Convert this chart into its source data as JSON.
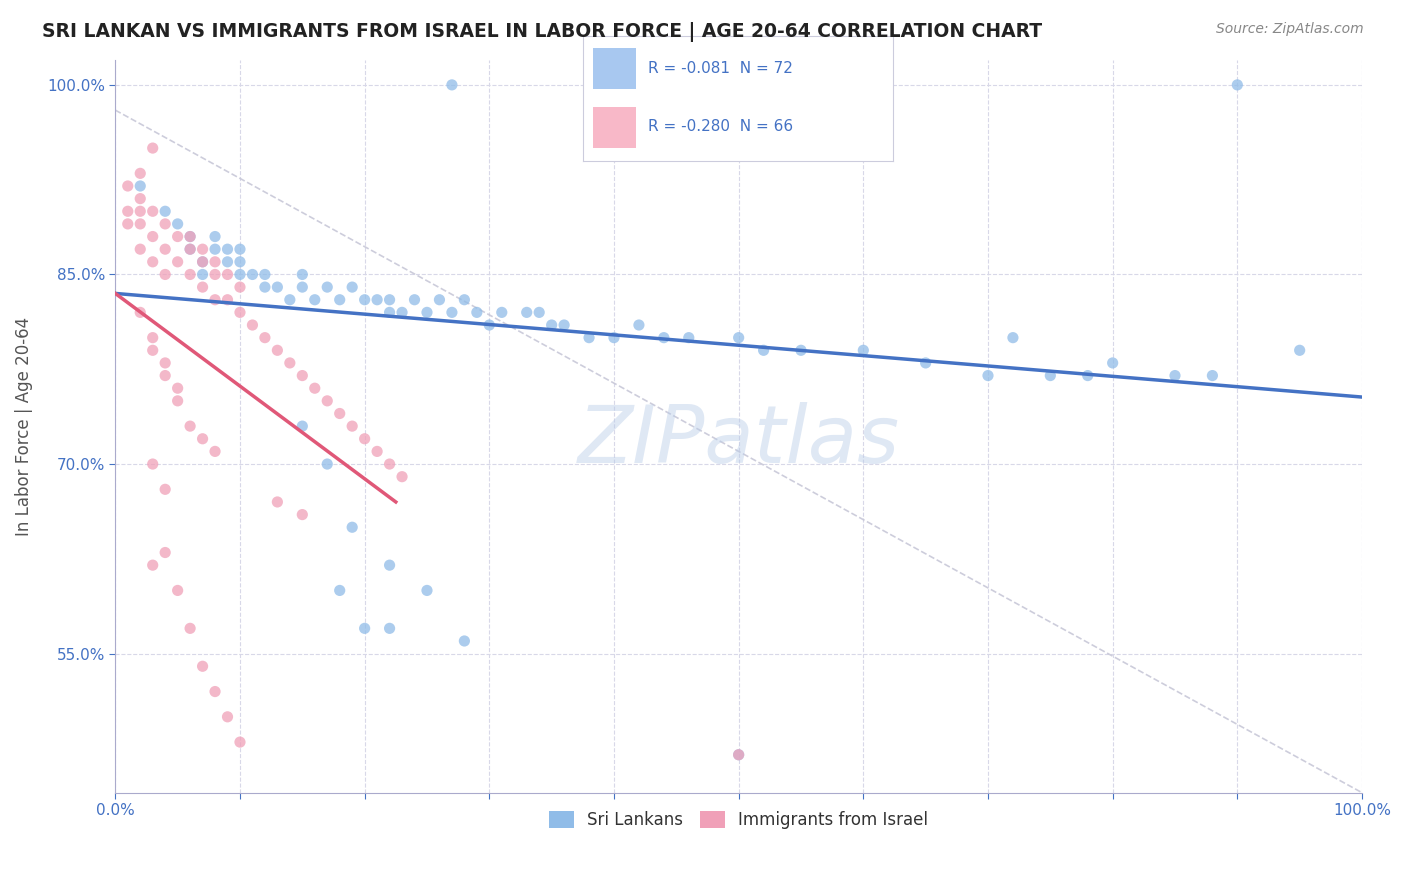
{
  "title": "SRI LANKAN VS IMMIGRANTS FROM ISRAEL IN LABOR FORCE | AGE 20-64 CORRELATION CHART",
  "source_text": "Source: ZipAtlas.com",
  "ylabel": "In Labor Force | Age 20-64",
  "watermark": "ZIPatlas",
  "bottom_legend": [
    "Sri Lankans",
    "Immigrants from Israel"
  ],
  "xlim": [
    0.0,
    1.0
  ],
  "ylim": [
    0.44,
    1.02
  ],
  "x_ticks": [
    0.0,
    0.1,
    0.2,
    0.3,
    0.4,
    0.5,
    0.6,
    0.7,
    0.8,
    0.9,
    1.0
  ],
  "x_tick_labels": [
    "0.0%",
    "",
    "",
    "",
    "",
    "",
    "",
    "",
    "",
    "",
    "100.0%"
  ],
  "y_ticks": [
    0.55,
    0.7,
    0.85,
    1.0
  ],
  "y_tick_labels": [
    "55.0%",
    "70.0%",
    "85.0%",
    "100.0%"
  ],
  "blue_R": "-0.081",
  "blue_N": "72",
  "pink_R": "-0.280",
  "pink_N": "66",
  "blue_scatter_x": [
    0.27,
    0.02,
    0.04,
    0.05,
    0.06,
    0.06,
    0.07,
    0.07,
    0.08,
    0.08,
    0.09,
    0.09,
    0.1,
    0.1,
    0.1,
    0.11,
    0.12,
    0.12,
    0.13,
    0.14,
    0.15,
    0.15,
    0.16,
    0.17,
    0.18,
    0.19,
    0.2,
    0.21,
    0.22,
    0.22,
    0.23,
    0.24,
    0.25,
    0.26,
    0.27,
    0.28,
    0.29,
    0.3,
    0.31,
    0.33,
    0.34,
    0.35,
    0.36,
    0.38,
    0.4,
    0.42,
    0.44,
    0.46,
    0.5,
    0.52,
    0.55,
    0.6,
    0.65,
    0.7,
    0.72,
    0.75,
    0.78,
    0.8,
    0.85,
    0.88,
    0.9,
    0.95,
    0.18,
    0.2,
    0.22,
    0.15,
    0.17,
    0.19,
    0.22,
    0.25,
    0.28,
    0.5
  ],
  "blue_scatter_y": [
    1.0,
    0.92,
    0.9,
    0.89,
    0.88,
    0.87,
    0.86,
    0.85,
    0.87,
    0.88,
    0.86,
    0.87,
    0.85,
    0.86,
    0.87,
    0.85,
    0.84,
    0.85,
    0.84,
    0.83,
    0.84,
    0.85,
    0.83,
    0.84,
    0.83,
    0.84,
    0.83,
    0.83,
    0.82,
    0.83,
    0.82,
    0.83,
    0.82,
    0.83,
    0.82,
    0.83,
    0.82,
    0.81,
    0.82,
    0.82,
    0.82,
    0.81,
    0.81,
    0.8,
    0.8,
    0.81,
    0.8,
    0.8,
    0.8,
    0.79,
    0.79,
    0.79,
    0.78,
    0.77,
    0.8,
    0.77,
    0.77,
    0.78,
    0.77,
    0.77,
    1.0,
    0.79,
    0.6,
    0.57,
    0.57,
    0.73,
    0.7,
    0.65,
    0.62,
    0.6,
    0.56,
    0.47
  ],
  "pink_scatter_x": [
    0.01,
    0.01,
    0.01,
    0.02,
    0.02,
    0.02,
    0.02,
    0.03,
    0.03,
    0.03,
    0.04,
    0.04,
    0.04,
    0.05,
    0.05,
    0.06,
    0.06,
    0.06,
    0.07,
    0.07,
    0.07,
    0.08,
    0.08,
    0.08,
    0.09,
    0.09,
    0.1,
    0.1,
    0.11,
    0.12,
    0.13,
    0.14,
    0.15,
    0.16,
    0.17,
    0.18,
    0.19,
    0.2,
    0.21,
    0.22,
    0.23,
    0.02,
    0.03,
    0.03,
    0.04,
    0.05,
    0.06,
    0.07,
    0.08,
    0.02,
    0.03,
    0.04,
    0.05,
    0.03,
    0.04,
    0.13,
    0.15,
    0.5,
    0.04,
    0.03,
    0.05,
    0.06,
    0.07,
    0.08,
    0.09,
    0.1
  ],
  "pink_scatter_y": [
    0.89,
    0.9,
    0.92,
    0.87,
    0.89,
    0.9,
    0.91,
    0.86,
    0.88,
    0.9,
    0.85,
    0.87,
    0.89,
    0.86,
    0.88,
    0.85,
    0.87,
    0.88,
    0.84,
    0.86,
    0.87,
    0.83,
    0.85,
    0.86,
    0.83,
    0.85,
    0.82,
    0.84,
    0.81,
    0.8,
    0.79,
    0.78,
    0.77,
    0.76,
    0.75,
    0.74,
    0.73,
    0.72,
    0.71,
    0.7,
    0.69,
    0.82,
    0.8,
    0.79,
    0.77,
    0.75,
    0.73,
    0.72,
    0.71,
    0.93,
    0.95,
    0.78,
    0.76,
    0.7,
    0.68,
    0.67,
    0.66,
    0.47,
    0.63,
    0.62,
    0.6,
    0.57,
    0.54,
    0.52,
    0.5,
    0.48
  ],
  "blue_line_x": [
    0.0,
    1.0
  ],
  "blue_line_y": [
    0.835,
    0.753
  ],
  "pink_line_x": [
    0.0,
    0.225
  ],
  "pink_line_y": [
    0.835,
    0.67
  ],
  "diag_line_x": [
    0.0,
    1.0
  ],
  "diag_line_y": [
    0.98,
    0.44
  ],
  "scatter_color_blue": "#90bce8",
  "scatter_color_pink": "#f0a0b8",
  "line_color_blue": "#4472c4",
  "line_color_pink": "#e05878",
  "diag_line_color": "#c8c8d8",
  "title_color": "#222222",
  "axis_color": "#4472c4",
  "background_color": "#ffffff",
  "grid_color": "#d8d8e8"
}
